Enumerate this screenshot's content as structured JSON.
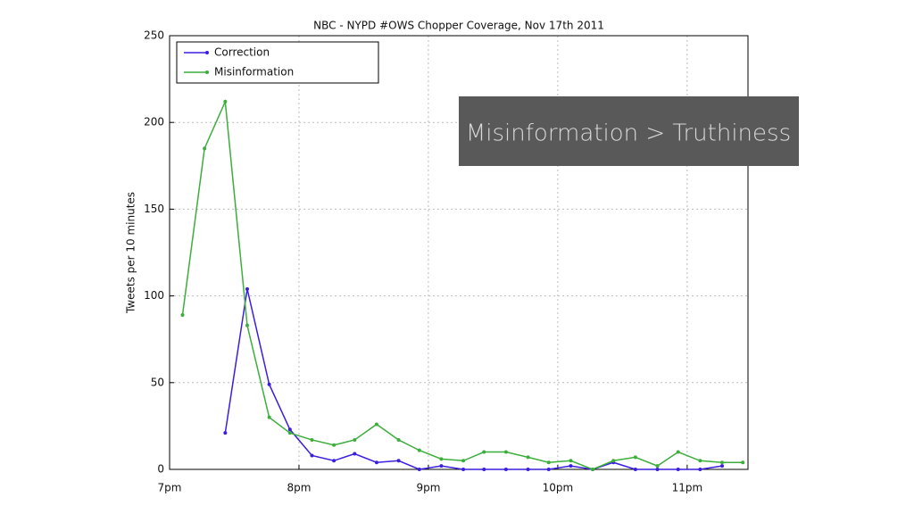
{
  "chart_data": {
    "type": "line",
    "title": "NBC - NYPD #OWS Chopper Coverage, Nov 17th 2011",
    "ylabel": "Tweets per 10 minutes",
    "annotation": "Misinformation > Truthiness",
    "x": [
      19.1,
      19.27,
      19.43,
      19.6,
      19.77,
      19.93,
      20.1,
      20.27,
      20.43,
      20.6,
      20.77,
      20.93,
      21.1,
      21.27,
      21.43,
      21.6,
      21.77,
      21.93,
      22.1,
      22.27,
      22.43,
      22.6,
      22.77,
      22.93,
      23.1,
      23.27,
      23.43
    ],
    "series": [
      {
        "name": "Correction",
        "color": "#3b1fe0",
        "values": [
          null,
          null,
          21,
          104,
          49,
          23,
          8,
          5,
          9,
          4,
          5,
          0,
          2,
          0,
          0,
          0,
          0,
          0,
          2,
          0,
          4,
          0,
          0,
          0,
          0,
          2,
          null
        ]
      },
      {
        "name": "Misinformation",
        "color": "#3cae3c",
        "values": [
          89,
          185,
          212,
          83,
          30,
          21,
          17,
          14,
          17,
          26,
          17,
          11,
          6,
          5,
          10,
          10,
          7,
          4,
          5,
          0,
          5,
          7,
          2,
          10,
          5,
          4,
          4
        ]
      }
    ],
    "xlim": [
      19,
      23.47
    ],
    "xticks": [
      {
        "value": 19,
        "label": "7pm"
      },
      {
        "value": 20,
        "label": "8pm"
      },
      {
        "value": 21,
        "label": "9pm"
      },
      {
        "value": 22,
        "label": "10pm"
      },
      {
        "value": 23,
        "label": "11pm"
      }
    ],
    "ylim": [
      0,
      250
    ],
    "yticks": [
      0,
      50,
      100,
      150,
      200,
      250
    ],
    "grid": true,
    "legend": "upper left"
  }
}
